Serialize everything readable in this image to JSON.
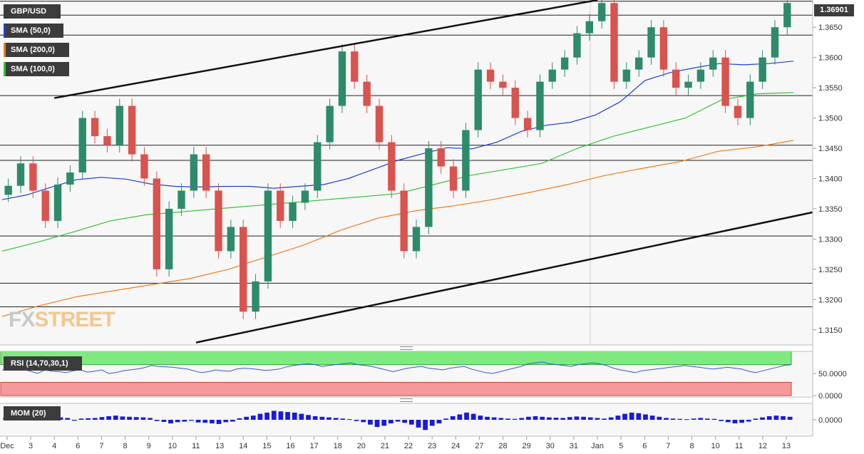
{
  "instrument": "GBP/USD",
  "current_price_label": "1.36901",
  "watermark": {
    "part1": "FX",
    "part2": "STREET"
  },
  "indicators": {
    "sma50_label": "SMA (50,0)",
    "sma200_label": "SMA (200,0)",
    "sma100_label": "SMA (100,0)",
    "rsi_label": "RSI (14,70,30,1)",
    "mom_label": "MOM (20)"
  },
  "colors": {
    "bull": "#2e8b6a",
    "bear": "#d9534f",
    "sma50": "#1f3fd8",
    "sma200": "#f07d1a",
    "sma100": "#31c431",
    "rsi_line": "#3355dd",
    "rsi_overbought": "#7fea7f",
    "rsi_oversold": "#f59a9a",
    "momentum": "#1a1adb",
    "trendline": "#111111"
  },
  "chart_data": [
    {
      "type": "candlestick",
      "title": "GBP/USD",
      "ylim": [
        1.3125,
        1.3695
      ],
      "y_ticks": [
        "1.3650",
        "1.3600",
        "1.3550",
        "1.3500",
        "1.3450",
        "1.3400",
        "1.3350",
        "1.3300",
        "1.3250",
        "1.3200",
        "1.3150"
      ],
      "x_tick_labels": [
        "Dec",
        "3",
        "4",
        "6",
        "7",
        "8",
        "9",
        "10",
        "11",
        "13",
        "14",
        "15",
        "16",
        "17",
        "18",
        "20",
        "21",
        "22",
        "23",
        "24",
        "27",
        "28",
        "29",
        "30",
        "31",
        "Jan",
        "5",
        "6",
        "7",
        "8",
        "10",
        "11",
        "12",
        "13"
      ],
      "horizontal_levels": [
        1.3693,
        1.367,
        1.3637,
        1.3537,
        1.3455,
        1.343,
        1.3305,
        1.3227,
        1.3188
      ],
      "trendlines": [
        {
          "from": [
            "Dec 4",
            1.3533
          ],
          "to": [
            "Jan 4",
            1.3695
          ]
        },
        {
          "from": [
            "Dec 11",
            1.3129
          ],
          "to": [
            "Jan 13",
            1.3335
          ]
        }
      ],
      "close_series": [
        1.3388,
        1.3425,
        1.338,
        1.333,
        1.339,
        1.341,
        1.35,
        1.347,
        1.3455,
        1.352,
        1.344,
        1.34,
        1.325,
        1.335,
        1.338,
        1.344,
        1.338,
        1.328,
        1.332,
        1.318,
        1.323,
        1.338,
        1.333,
        1.336,
        1.338,
        1.346,
        1.352,
        1.361,
        1.356,
        1.352,
        1.346,
        1.338,
        1.328,
        1.332,
        1.345,
        1.342,
        1.338,
        1.348,
        1.358,
        1.356,
        1.355,
        1.35,
        1.348,
        1.356,
        1.358,
        1.36,
        1.364,
        1.366,
        1.369,
        1.356,
        1.358,
        1.36,
        1.365,
        1.358,
        1.355,
        1.356,
        1.358,
        1.36,
        1.352,
        1.35,
        1.356,
        1.36,
        1.365,
        1.369
      ],
      "series": [
        {
          "name": "SMA (50,0)",
          "values": [
            1.3365,
            1.3373,
            1.3386,
            1.3398,
            1.3402,
            1.3399,
            1.3391,
            1.3387,
            1.3386,
            1.3387,
            1.3387,
            1.3384,
            1.3387,
            1.339,
            1.34,
            1.3415,
            1.343,
            1.3441,
            1.3451,
            1.3449,
            1.346,
            1.3478,
            1.3488,
            1.3493,
            1.3505,
            1.3527,
            1.3562,
            1.3575,
            1.3583,
            1.359,
            1.3588,
            1.359,
            1.3594
          ]
        },
        {
          "name": "SMA (200,0)",
          "values": [
            1.3172,
            1.319,
            1.3205,
            1.3215,
            1.3225,
            1.3235,
            1.325,
            1.327,
            1.329,
            1.3315,
            1.3335,
            1.3347,
            1.3355,
            1.3365,
            1.3377,
            1.339,
            1.3405,
            1.3417,
            1.3428,
            1.3445,
            1.3452,
            1.3463
          ]
        },
        {
          "name": "SMA (100,0)",
          "values": [
            1.328,
            1.3295,
            1.3312,
            1.333,
            1.334,
            1.3345,
            1.335,
            1.3355,
            1.336,
            1.3365,
            1.337,
            1.3375,
            1.339,
            1.3405,
            1.3415,
            1.3425,
            1.345,
            1.347,
            1.3485,
            1.35,
            1.353,
            1.354,
            1.3542
          ]
        }
      ]
    },
    {
      "type": "line",
      "title": "RSI (14,70,30,1)",
      "ylim": [
        0,
        100
      ],
      "y_ticks": [
        "50.0000",
        "0.0000"
      ],
      "overbought": 70,
      "oversold": 30,
      "values": [
        58,
        60,
        62,
        59,
        55,
        50,
        58,
        55,
        54,
        52,
        56,
        58,
        53,
        55,
        58,
        50,
        52,
        56,
        58,
        60,
        63,
        68,
        66,
        65,
        64,
        62,
        60,
        56,
        52,
        54,
        58,
        56,
        55,
        60,
        62,
        61,
        59,
        57,
        58,
        60,
        65,
        68,
        70,
        72,
        70,
        66,
        68,
        70,
        72,
        74,
        70,
        68,
        66,
        62,
        58,
        54,
        58,
        62,
        64,
        66,
        62,
        60,
        58,
        62,
        64,
        66,
        60,
        56,
        52,
        50,
        54,
        58,
        62,
        66,
        72,
        74,
        76,
        72,
        70,
        68,
        66,
        70,
        72,
        74,
        72,
        68,
        62,
        58,
        55,
        52,
        56,
        58,
        60,
        62,
        64,
        66,
        68,
        66,
        64,
        62,
        60,
        62,
        64,
        62,
        60,
        55,
        52,
        56,
        60,
        64,
        68,
        70
      ]
    },
    {
      "type": "bar",
      "title": "MOM (20)",
      "y_ticks": [
        "0.0000"
      ],
      "values": [
        0.0008,
        0.0006,
        0.001,
        0.0012,
        0.0009,
        0.0007,
        0.0011,
        0.001,
        0.0008,
        0.0006,
        -0.0003,
        0.0004,
        0.0005,
        0.0006,
        0.0009,
        0.0012,
        0.0014,
        0.0011,
        0.001,
        0.0009,
        0.0008,
        0.0006,
        -0.0004,
        -0.0007,
        -0.0012,
        -0.0008,
        -0.0006,
        -0.0003,
        -0.0009,
        -0.001,
        -0.0012,
        -0.0014,
        -0.0008,
        -0.0006,
        0.0005,
        0.001,
        0.0014,
        0.002,
        0.0024,
        0.003,
        0.0028,
        0.0026,
        0.0024,
        0.002,
        0.0016,
        0.0012,
        0.001,
        0.0008,
        0.0006,
        0.0004,
        0.0002,
        -0.0004,
        -0.0008,
        -0.0016,
        -0.0024,
        -0.002,
        -0.0012,
        -0.0006,
        -0.001,
        -0.0016,
        -0.0026,
        -0.0034,
        -0.002,
        -0.0012,
        0.0004,
        0.0012,
        0.0018,
        0.0024,
        0.002,
        0.0014,
        0.001,
        0.0008,
        0.0006,
        0.0004,
        0.0003,
        0.0006,
        0.001,
        0.0012,
        0.001,
        0.0008,
        0.0007,
        0.0006,
        0.0009,
        0.0011,
        0.001,
        0.0008,
        0.0006,
        0.0004,
        0.0008,
        0.0014,
        0.002,
        0.0024,
        0.0022,
        0.0018,
        0.0014,
        0.001,
        0.0006,
        0.0004,
        0.0003,
        0.0002,
        0.0004,
        0.0006,
        0.0004,
        0.0003,
        -0.0004,
        -0.0008,
        -0.0012,
        -0.001,
        -0.0006,
        0.0004,
        0.0008,
        0.0012,
        0.0014,
        0.0012,
        0.001
      ]
    }
  ]
}
